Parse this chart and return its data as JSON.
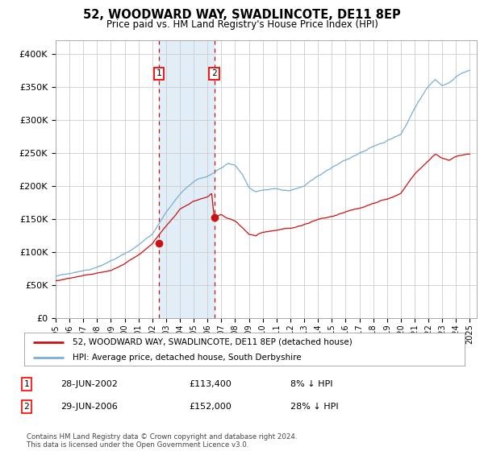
{
  "title": "52, WOODWARD WAY, SWADLINCOTE, DE11 8EP",
  "subtitle": "Price paid vs. HM Land Registry's House Price Index (HPI)",
  "ylim": [
    0,
    420000
  ],
  "yticks": [
    0,
    50000,
    100000,
    150000,
    200000,
    250000,
    300000,
    350000,
    400000
  ],
  "ytick_labels": [
    "£0",
    "£50K",
    "£100K",
    "£150K",
    "£200K",
    "£250K",
    "£300K",
    "£350K",
    "£400K"
  ],
  "hpi_color": "#7aaed6",
  "price_color": "#cc1111",
  "background_color": "#ffffff",
  "grid_color": "#cccccc",
  "sale1_date": 2002.49,
  "sale1_price": 113400,
  "sale2_date": 2006.49,
  "sale2_price": 152000,
  "legend_line1": "52, WOODWARD WAY, SWADLINCOTE, DE11 8EP (detached house)",
  "legend_line2": "HPI: Average price, detached house, South Derbyshire",
  "footnote": "Contains HM Land Registry data © Crown copyright and database right 2024.\nThis data is licensed under the Open Government Licence v3.0.",
  "shade_color": "#daeaf5",
  "shade_alpha": 0.8
}
